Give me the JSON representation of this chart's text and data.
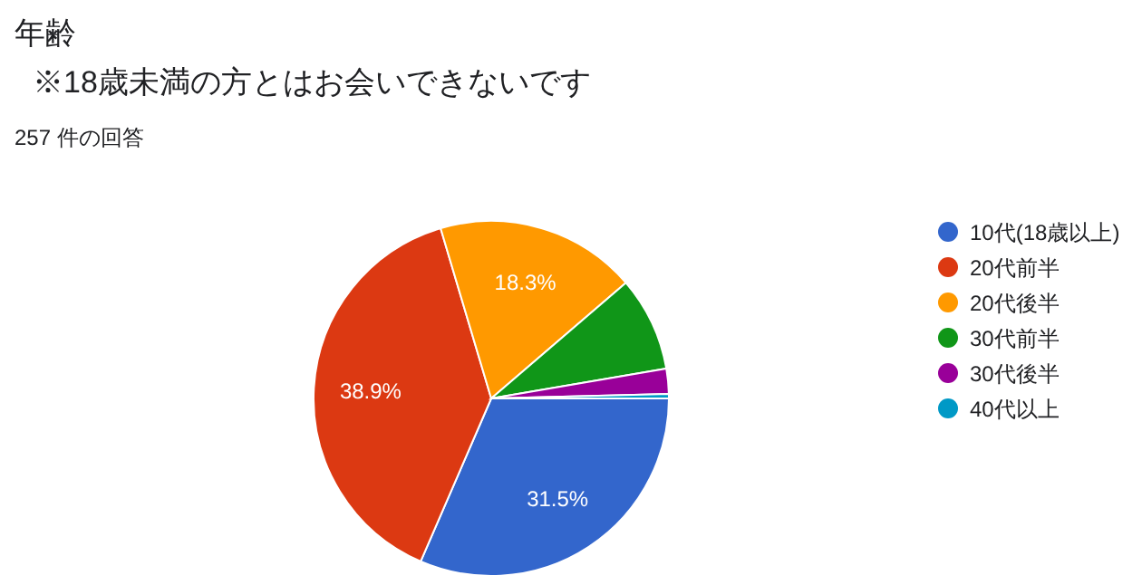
{
  "chart_data": {
    "type": "pie",
    "title": "年齢",
    "subtitle": "※18歳未満の方とはお会いできないです",
    "annotations": [
      "257 件の回答"
    ],
    "categories": [
      "10代(18歳以上)",
      "20代前半",
      "20代後半",
      "30代前半",
      "30代後半",
      "40代以上"
    ],
    "values": [
      31.5,
      38.9,
      18.3,
      8.6,
      2.3,
      0.4
    ],
    "colors": [
      "#3366cc",
      "#dc3912",
      "#ff9900",
      "#109618",
      "#990099",
      "#0099c6"
    ],
    "value_labels": [
      "31.5%",
      "38.9%",
      "18.3%",
      null,
      null,
      null
    ],
    "legend": "right"
  }
}
